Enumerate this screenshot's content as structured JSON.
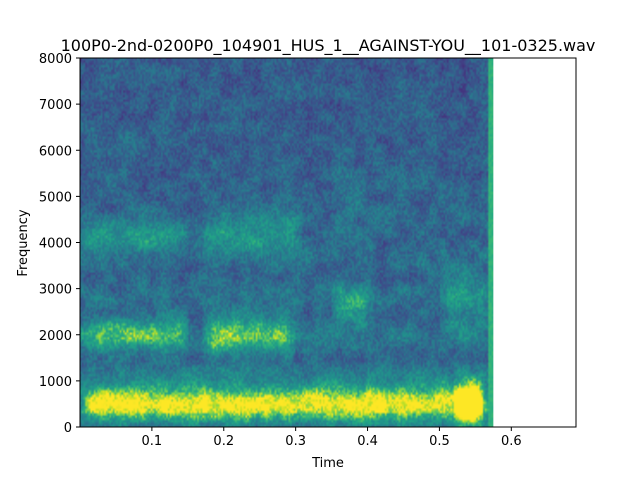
{
  "chart_data": {
    "type": "heatmap",
    "title": "100P0-2nd-0200P0_104901_HUS_1__AGAINST-YOU__101-0325.wav",
    "xlabel": "Time",
    "ylabel": "Frequency",
    "xlim": [
      0.0,
      0.69
    ],
    "ylim": [
      0,
      8000
    ],
    "data_extent_time": [
      0.0,
      0.575
    ],
    "x_ticks": [
      0.1,
      0.2,
      0.3,
      0.4,
      0.5,
      0.6
    ],
    "y_ticks": [
      0,
      1000,
      2000,
      3000,
      4000,
      5000,
      6000,
      7000,
      8000
    ],
    "colormap": "viridis",
    "grid": false,
    "energy_bands": [
      {
        "time": [
          0.0,
          0.56
        ],
        "freq": [
          300,
          750
        ],
        "intensity": 0.95
      },
      {
        "time": [
          0.0,
          0.15
        ],
        "freq": [
          1800,
          2200
        ],
        "intensity": 0.7
      },
      {
        "time": [
          0.0,
          0.15
        ],
        "freq": [
          3900,
          4300
        ],
        "intensity": 0.6
      },
      {
        "time": [
          0.17,
          0.3
        ],
        "freq": [
          1700,
          2300
        ],
        "intensity": 0.75
      },
      {
        "time": [
          0.17,
          0.31
        ],
        "freq": [
          3800,
          4500
        ],
        "intensity": 0.6
      },
      {
        "time": [
          0.35,
          0.41
        ],
        "freq": [
          2200,
          3000
        ],
        "intensity": 0.6
      },
      {
        "time": [
          0.35,
          0.4
        ],
        "freq": [
          4400,
          5500
        ],
        "intensity": 0.45
      },
      {
        "time": [
          0.52,
          0.57
        ],
        "freq": [
          200,
          900
        ],
        "intensity": 0.9
      },
      {
        "time": [
          0.5,
          0.57
        ],
        "freq": [
          2000,
          3500
        ],
        "intensity": 0.55
      }
    ]
  }
}
